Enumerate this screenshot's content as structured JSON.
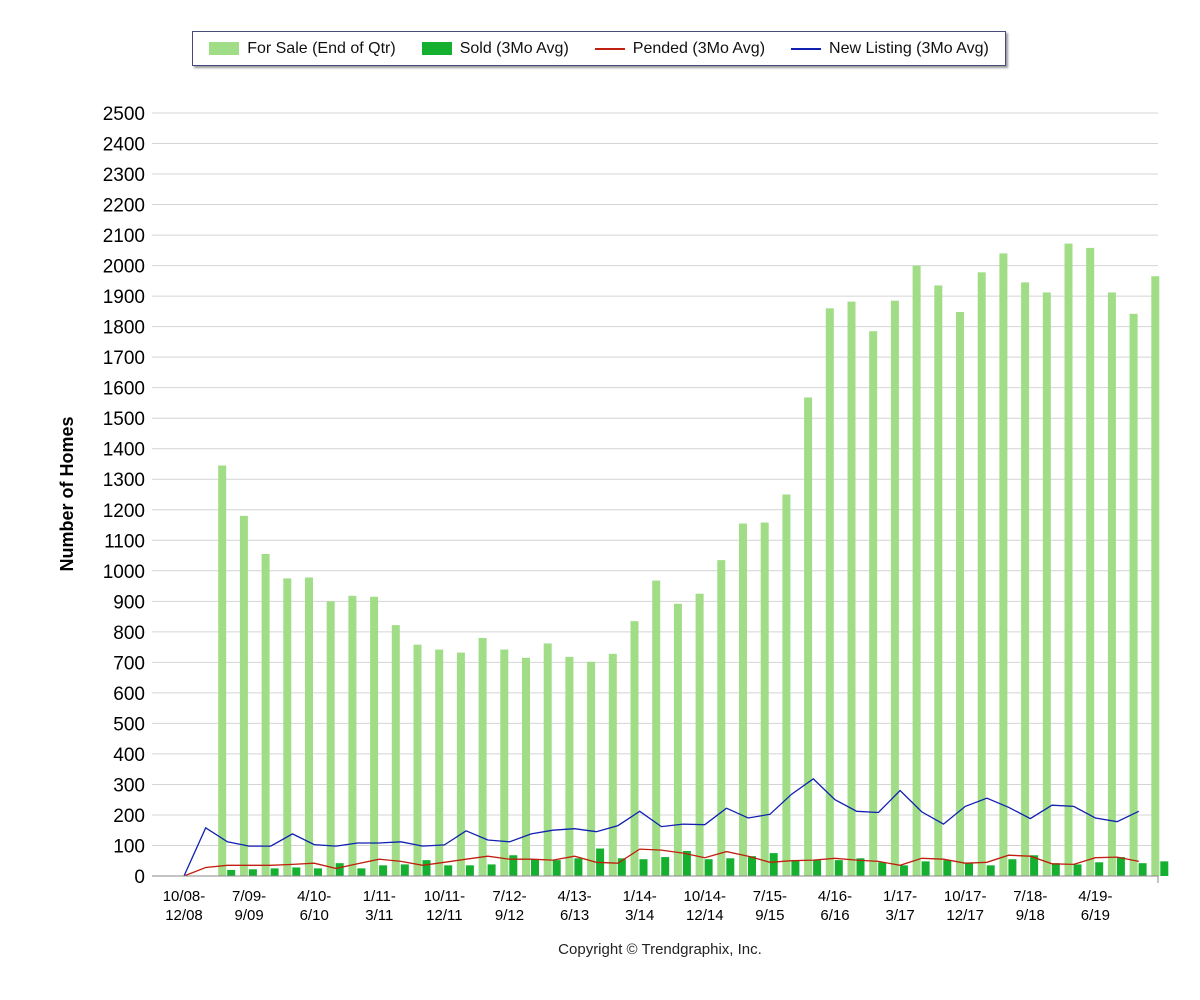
{
  "chart_data": {
    "type": "bar",
    "ylabel": "Number of Homes",
    "ylim": [
      0,
      2500
    ],
    "ytick_step": 100,
    "grid": true,
    "legend_position": "top",
    "x_tick_labels": [
      [
        "10/08-",
        "12/08"
      ],
      [
        "7/09-",
        "9/09"
      ],
      [
        "4/10-",
        "6/10"
      ],
      [
        "1/11-",
        "3/11"
      ],
      [
        "10/11-",
        "12/11"
      ],
      [
        "7/12-",
        "9/12"
      ],
      [
        "4/13-",
        "6/13"
      ],
      [
        "1/14-",
        "3/14"
      ],
      [
        "10/14-",
        "12/14"
      ],
      [
        "7/15-",
        "9/15"
      ],
      [
        "4/16-",
        "6/16"
      ],
      [
        "1/17-",
        "3/17"
      ],
      [
        "10/17-",
        "12/17"
      ],
      [
        "7/18-",
        "9/18"
      ],
      [
        "4/19-",
        "6/19"
      ]
    ],
    "series": [
      {
        "name": "For Sale (End of Qtr)",
        "kind": "bar",
        "color": "#a0dd86",
        "values": [
          0,
          1345,
          1180,
          1055,
          975,
          978,
          900,
          918,
          915,
          822,
          758,
          742,
          732,
          780,
          742,
          715,
          762,
          718,
          702,
          728,
          835,
          968,
          892,
          925,
          1035,
          1155,
          1158,
          1250,
          1568,
          1860,
          1882,
          1785,
          1885,
          2000,
          1935,
          1848,
          1978,
          2040,
          1945,
          1912,
          2072,
          2058,
          1912,
          1842,
          1965
        ]
      },
      {
        "name": "Sold (3Mo Avg)",
        "kind": "bar",
        "color": "#16b030",
        "values": [
          0,
          20,
          22,
          25,
          28,
          25,
          42,
          25,
          35,
          38,
          52,
          35,
          35,
          38,
          68,
          55,
          52,
          58,
          90,
          58,
          55,
          62,
          82,
          55,
          58,
          65,
          75,
          50,
          52,
          52,
          58,
          45,
          35,
          48,
          52,
          42,
          35,
          55,
          68,
          42,
          38,
          45,
          62,
          42,
          48
        ]
      },
      {
        "name": "Pended (3Mo Avg)",
        "kind": "line",
        "color": "#c0200f",
        "values": [
          0,
          28,
          35,
          35,
          35,
          38,
          42,
          25,
          40,
          55,
          48,
          35,
          45,
          55,
          65,
          55,
          55,
          52,
          65,
          45,
          42,
          88,
          85,
          75,
          60,
          80,
          65,
          45,
          50,
          52,
          58,
          52,
          48,
          35,
          58,
          55,
          42,
          45,
          68,
          65,
          40,
          38,
          60,
          62,
          48
        ]
      },
      {
        "name": "New Listing (3Mo Avg)",
        "kind": "line",
        "color": "#1020b0",
        "values": [
          0,
          158,
          112,
          98,
          98,
          138,
          103,
          98,
          108,
          108,
          112,
          98,
          102,
          148,
          118,
          112,
          138,
          150,
          155,
          145,
          165,
          212,
          162,
          170,
          168,
          222,
          190,
          202,
          268,
          318,
          250,
          212,
          208,
          280,
          210,
          170,
          228,
          255,
          225,
          188,
          232,
          228,
          190,
          178,
          212
        ]
      }
    ]
  },
  "copyright": "Copyright © Trendgraphix, Inc."
}
